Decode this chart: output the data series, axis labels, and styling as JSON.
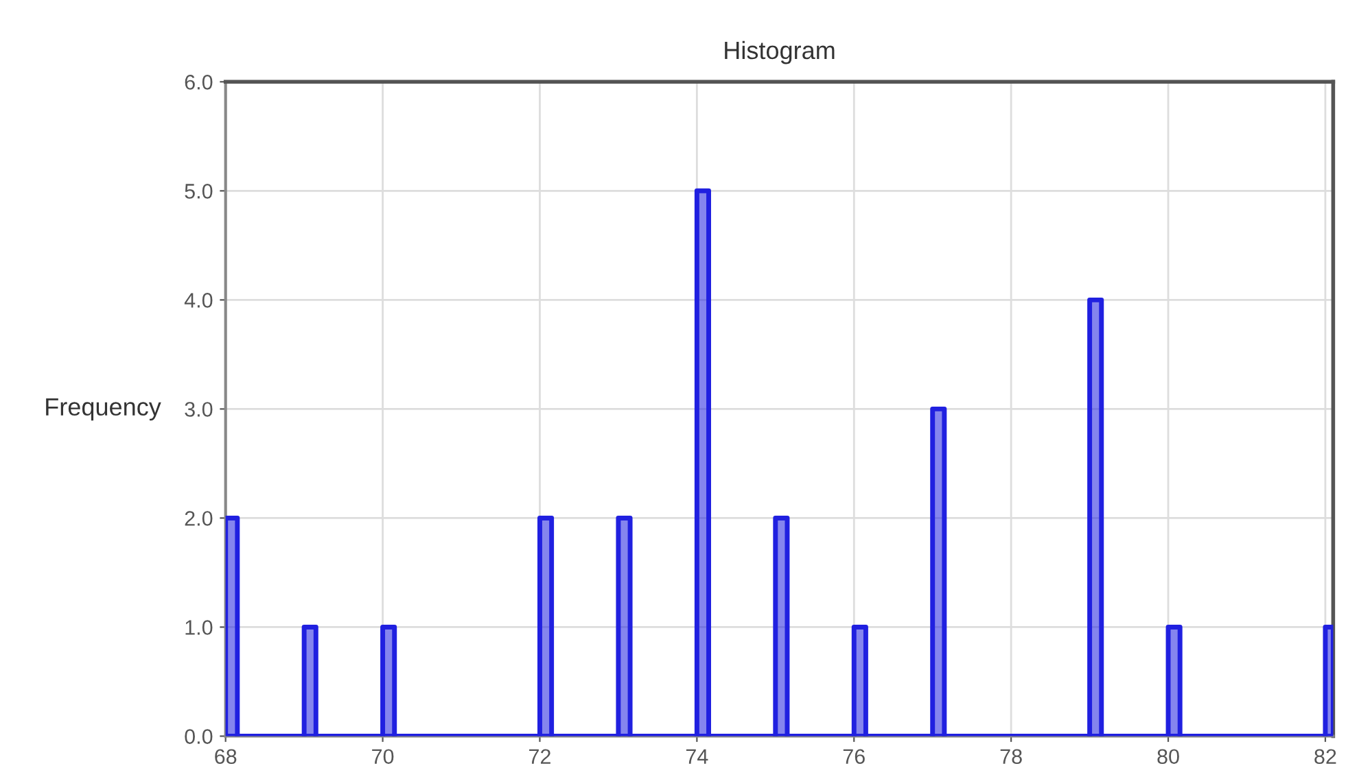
{
  "chart_data": {
    "type": "histogram",
    "title": "Histogram",
    "ylabel": "Frequency",
    "bins": [
      68,
      68.15,
      69,
      69.15,
      70,
      70.15,
      72,
      72.15,
      73,
      73.15,
      74,
      74.15,
      75,
      75.15,
      76,
      76.15,
      77,
      77.15,
      79,
      79.15,
      80,
      80.15,
      82,
      82.1
    ],
    "values": [
      2,
      0,
      1,
      0,
      1,
      0,
      2,
      0,
      2,
      0,
      5,
      0,
      2,
      0,
      1,
      0,
      3,
      0,
      4,
      0,
      1,
      0,
      1
    ],
    "color": "#2020e0",
    "xlim": [
      68,
      82.1
    ],
    "xticks": [
      68,
      70,
      72,
      74,
      76,
      78,
      80,
      82
    ],
    "ylim": [
      0,
      6
    ],
    "yticks": [
      {
        "value": 0,
        "label": "0.0"
      },
      {
        "value": 1,
        "label": "1.0"
      },
      {
        "value": 2,
        "label": "2.0"
      },
      {
        "value": 3,
        "label": "3.0"
      },
      {
        "value": 4,
        "label": "4.0"
      },
      {
        "value": 5,
        "label": "5.0"
      },
      {
        "value": 6,
        "label": "6.0"
      }
    ],
    "grid": true
  }
}
